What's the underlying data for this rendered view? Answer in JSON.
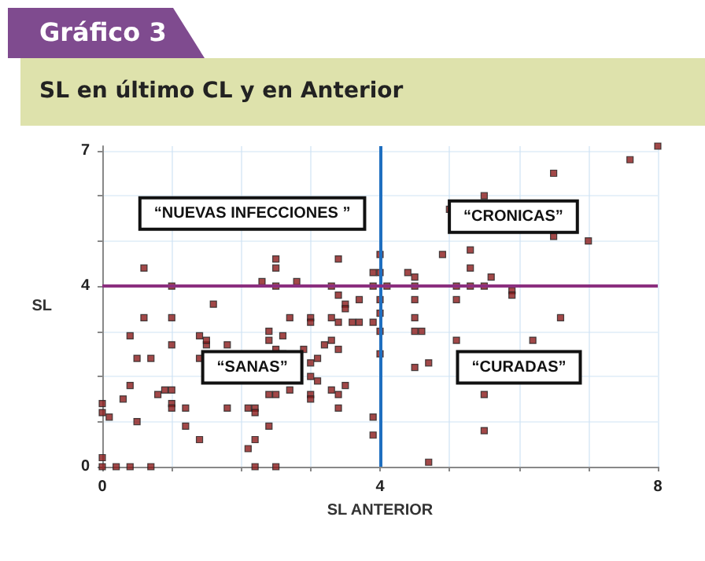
{
  "chart_data": {
    "type": "scatter",
    "title": "Gráfico 3",
    "subtitle": "SL en último CL y en Anterior",
    "xlabel": "SL ANTERIOR",
    "ylabel": "SL",
    "xlim": [
      0,
      8
    ],
    "ylim": [
      0,
      7.1
    ],
    "xticks": [
      0,
      {
        "value": 1,
        "label": null
      },
      {
        "value": 2,
        "label": null
      },
      {
        "value": 3,
        "label": null
      },
      4,
      {
        "value": 5,
        "label": null
      },
      {
        "value": 6,
        "label": null
      },
      {
        "value": 7,
        "label": null
      },
      8
    ],
    "yticks": [
      0,
      {
        "value": 1,
        "label": null
      },
      {
        "value": 2,
        "label": null
      },
      {
        "value": 3,
        "label": null
      },
      4,
      {
        "value": 5,
        "label": null
      },
      {
        "value": 6,
        "label": null
      },
      7
    ],
    "grid": true,
    "marker": "square",
    "ref_lines": [
      {
        "axis": "x",
        "value": 4,
        "color": "#1f6fc0"
      },
      {
        "axis": "y",
        "value": 4,
        "color": "#8b2f7f"
      }
    ],
    "annotations": [
      "“NUEVAS INFECCIONES ”",
      "“CRONICAS”",
      "“SANAS”",
      "“CURADAS”"
    ],
    "series": [
      {
        "color": "#8b1a1a",
        "x": [
          0.6,
          1.0,
          1.6,
          0.6,
          1.0,
          2.3,
          2.5,
          2.5,
          2.5,
          2.8,
          3.4,
          3.3,
          3.4,
          3.5,
          3.5,
          3.7,
          4.0,
          3.9,
          4.0,
          3.9,
          4.0,
          2.7,
          3.0,
          3.3,
          8.0,
          7.6,
          6.5,
          5.5,
          5.0,
          6.5,
          7.0,
          4.9,
          5.3,
          5.3,
          4.4,
          4.5,
          5.6,
          5.5,
          5.1,
          4.1,
          4.5,
          5.3,
          5.9,
          5.9,
          4.5,
          5.1,
          4.5,
          6.6,
          4.0,
          4.5,
          4.6,
          5.1,
          6.2,
          4.0,
          4.5,
          4.7,
          5.5,
          5.5,
          4.7,
          0.4,
          1.4,
          1.0,
          1.5,
          1.8,
          1.5,
          2.4,
          2.6,
          3.0,
          3.4,
          3.6,
          3.7,
          3.9,
          4.0,
          3.2,
          3.3,
          3.4,
          2.5,
          2.4,
          2.9,
          3.0,
          3.1,
          2.6,
          0.5,
          0.7,
          1.4,
          3.0,
          3.1,
          2.7,
          3.0,
          3.0,
          3.3,
          3.5,
          3.4,
          3.4,
          3.9,
          3.9,
          0.4,
          0.3,
          0.0,
          0.0,
          0.1,
          0.5,
          0.8,
          0.9,
          1.0,
          1.0,
          1.0,
          1.2,
          1.2,
          1.4,
          1.8,
          2.1,
          2.2,
          2.2,
          2.4,
          2.2,
          2.1,
          2.5,
          2.4,
          0.0,
          0.0,
          0.2,
          0.4,
          0.7,
          2.2,
          2.5
        ],
        "values": [
          4.4,
          4.0,
          3.6,
          3.3,
          3.3,
          4.1,
          4.6,
          4.4,
          4.0,
          4.1,
          4.6,
          4.0,
          3.8,
          3.6,
          3.5,
          3.7,
          4.7,
          4.3,
          4.3,
          4.0,
          3.7,
          3.3,
          3.3,
          3.3,
          7.1,
          6.8,
          6.5,
          6.0,
          5.7,
          5.1,
          5.0,
          4.7,
          4.8,
          4.4,
          4.3,
          4.2,
          4.2,
          4.0,
          4.0,
          4.0,
          4.0,
          4.0,
          3.9,
          3.8,
          3.7,
          3.7,
          3.3,
          3.3,
          3.0,
          3.0,
          3.0,
          2.8,
          2.8,
          2.5,
          2.2,
          2.3,
          1.6,
          0.8,
          0.1,
          2.9,
          2.9,
          2.7,
          2.7,
          2.7,
          2.8,
          3.0,
          2.9,
          3.2,
          3.2,
          3.2,
          3.2,
          3.2,
          3.4,
          2.7,
          2.8,
          2.6,
          2.6,
          2.8,
          2.6,
          2.3,
          2.4,
          2.5,
          2.4,
          2.4,
          2.4,
          2.0,
          1.9,
          1.7,
          1.6,
          1.5,
          1.7,
          1.8,
          1.6,
          1.3,
          1.1,
          0.7,
          1.8,
          1.5,
          1.4,
          1.2,
          1.1,
          1.0,
          1.6,
          1.7,
          1.7,
          1.4,
          1.3,
          1.3,
          0.9,
          0.6,
          1.3,
          1.3,
          1.3,
          1.2,
          0.9,
          0.6,
          0.4,
          1.6,
          1.6,
          0.2,
          0.0,
          0.0,
          0.0,
          0.0,
          0.0,
          0.0
        ]
      }
    ]
  }
}
